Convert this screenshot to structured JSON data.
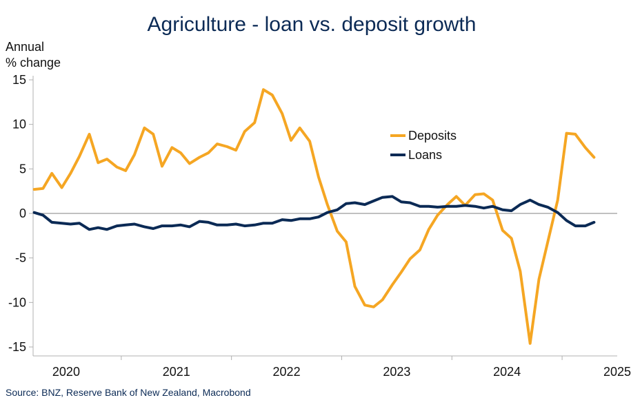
{
  "chart_data": {
    "type": "line",
    "title": "Agriculture - loan vs. deposit growth",
    "ylabel": [
      "Annual",
      "% change"
    ],
    "xlabel": "",
    "ylim": [
      -15,
      15
    ],
    "yticks": [
      15,
      10,
      5,
      0,
      -5,
      -10,
      -15
    ],
    "xlim": [
      2019.7,
      2025.0
    ],
    "x_tick_labels": [
      "2020",
      "2021",
      "2022",
      "2023",
      "2024",
      "2025"
    ],
    "zero_line": true,
    "grid": false,
    "legend_position": "upper-right-inside",
    "source": "Source: BNZ, Reserve Bank of New Zealand, Macrobond",
    "series": [
      {
        "name": "Deposits",
        "color": "#f5a623",
        "x": [
          2019.71,
          2019.79,
          2019.87,
          2019.96,
          2020.04,
          2020.12,
          2020.21,
          2020.29,
          2020.37,
          2020.46,
          2020.54,
          2020.62,
          2020.71,
          2020.79,
          2020.87,
          2020.96,
          2021.04,
          2021.12,
          2021.21,
          2021.29,
          2021.37,
          2021.46,
          2021.54,
          2021.62,
          2021.71,
          2021.79,
          2021.87,
          2021.96,
          2022.04,
          2022.12,
          2022.21,
          2022.29,
          2022.37,
          2022.46,
          2022.54,
          2022.62,
          2022.71,
          2022.79,
          2022.87,
          2022.96,
          2023.04,
          2023.12,
          2023.21,
          2023.29,
          2023.37,
          2023.46,
          2023.54,
          2023.62,
          2023.71,
          2023.79,
          2023.87,
          2023.96,
          2024.04,
          2024.12,
          2024.21,
          2024.29,
          2024.37,
          2024.46,
          2024.54,
          2024.62,
          2024.71,
          2024.79
        ],
        "values": [
          2.7,
          2.8,
          4.5,
          2.9,
          4.5,
          6.4,
          8.9,
          5.7,
          6.1,
          5.2,
          4.8,
          6.6,
          9.6,
          8.9,
          5.3,
          7.4,
          6.8,
          5.6,
          6.3,
          6.8,
          7.8,
          7.5,
          7.1,
          9.2,
          10.2,
          13.9,
          13.3,
          11.2,
          8.2,
          9.6,
          8.1,
          4.1,
          1.0,
          -2.0,
          -3.2,
          -8.2,
          -10.3,
          -10.5,
          -9.7,
          -8.0,
          -6.6,
          -5.1,
          -4.1,
          -1.8,
          -0.2,
          1.0,
          1.9,
          0.9,
          2.1,
          2.2,
          1.5,
          -1.9,
          -2.8,
          -6.5,
          -14.6,
          -7.4,
          -3.2,
          1.5,
          9.0,
          8.9,
          7.4,
          6.3
        ]
      },
      {
        "name": "Loans",
        "color": "#0b2a55",
        "x": [
          2019.71,
          2019.79,
          2019.87,
          2019.96,
          2020.04,
          2020.12,
          2020.21,
          2020.29,
          2020.37,
          2020.46,
          2020.54,
          2020.62,
          2020.71,
          2020.79,
          2020.87,
          2020.96,
          2021.04,
          2021.12,
          2021.21,
          2021.29,
          2021.37,
          2021.46,
          2021.54,
          2021.62,
          2021.71,
          2021.79,
          2021.87,
          2021.96,
          2022.04,
          2022.12,
          2022.21,
          2022.29,
          2022.37,
          2022.46,
          2022.54,
          2022.62,
          2022.71,
          2022.79,
          2022.87,
          2022.96,
          2023.04,
          2023.12,
          2023.21,
          2023.29,
          2023.37,
          2023.46,
          2023.54,
          2023.62,
          2023.71,
          2023.79,
          2023.87,
          2023.96,
          2024.04,
          2024.12,
          2024.21,
          2024.29,
          2024.37,
          2024.46,
          2024.54,
          2024.62,
          2024.71,
          2024.79
        ],
        "values": [
          0.1,
          -0.2,
          -1.0,
          -1.1,
          -1.2,
          -1.1,
          -1.8,
          -1.6,
          -1.8,
          -1.4,
          -1.3,
          -1.2,
          -1.5,
          -1.7,
          -1.4,
          -1.4,
          -1.3,
          -1.5,
          -0.9,
          -1.0,
          -1.3,
          -1.3,
          -1.2,
          -1.4,
          -1.3,
          -1.1,
          -1.1,
          -0.7,
          -0.8,
          -0.6,
          -0.6,
          -0.4,
          0.1,
          0.4,
          1.1,
          1.2,
          1.0,
          1.4,
          1.8,
          1.9,
          1.3,
          1.2,
          0.8,
          0.8,
          0.7,
          0.8,
          0.8,
          0.9,
          0.8,
          0.6,
          0.8,
          0.4,
          0.3,
          1.0,
          1.5,
          1.0,
          0.7,
          0.1,
          -0.8,
          -1.4,
          -1.4,
          -1.0
        ]
      }
    ]
  }
}
